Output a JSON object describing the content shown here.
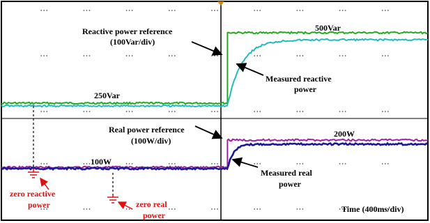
{
  "chart_data": {
    "type": "line",
    "title": "",
    "xlabel": "Time (400ms/div)",
    "ylabel": "",
    "x_step_at_div": 5.3,
    "series": [
      {
        "name": "Reactive power reference",
        "color": "#22aa22",
        "before": 250,
        "after": 500,
        "unit": "Var"
      },
      {
        "name": "Measured reactive power",
        "color": "#22bbbb",
        "before": 240,
        "after": 475,
        "unit": "Var"
      },
      {
        "name": "Real power reference",
        "color": "#a020a0",
        "before": 100,
        "after": 200,
        "unit": "W"
      },
      {
        "name": "Measured real power",
        "color": "#1a1a99",
        "before": 95,
        "after": 185,
        "unit": "W"
      }
    ]
  },
  "annotations": {
    "q_ref": "Reactive power reference",
    "q_ref_scale": "(100Var/div)",
    "q_500": "500Var",
    "q_250": "250Var",
    "q_meas_1": "Measured reactive",
    "q_meas_2": "power",
    "p_ref": "Real power reference",
    "p_ref_scale": "(100W/div)",
    "p_200": "200W",
    "p_100": "100W",
    "p_meas_1": "Measured real",
    "p_meas_2": "power",
    "zero_q_1": "zero reactive",
    "zero_q_2": "power",
    "zero_p_1": "zero real",
    "zero_p_2": "power",
    "time": "Time (400ms/div)"
  },
  "colors": {
    "reference_markers": "#e01010",
    "frame": "#000000",
    "grid_dots": "#555555"
  }
}
